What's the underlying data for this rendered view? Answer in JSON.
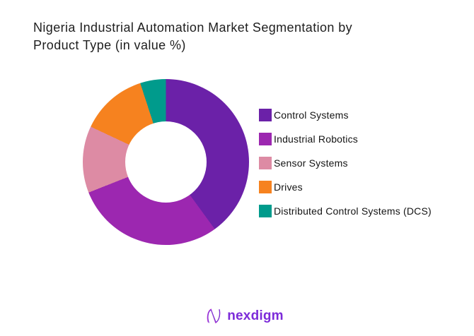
{
  "page": {
    "background": "#ffffff",
    "text_color": "#1e1e1e"
  },
  "header": {
    "title": "Nigeria Industrial Automation Market Segmentation by Product Type (in value %)",
    "title_lines": [
      "Nigeria Industrial Automation Market Segmentation by",
      "Product Type (in value %)"
    ]
  },
  "chart_data": {
    "type": "pie",
    "subtype": "donut",
    "title": "Nigeria Industrial Automation Market Segmentation by Product Type (in value %)",
    "categories": [
      "Control Systems",
      "Industrial Robotics",
      "Sensor Systems",
      "Drives",
      "Distributed Control Systems (DCS)"
    ],
    "values": [
      40,
      29,
      13,
      13,
      5
    ],
    "unit": "value %",
    "values_note": "estimated from arc angles; no data labels shown on chart",
    "colors": [
      "#6B21A8",
      "#9C27B0",
      "#DD8BA4",
      "#F6821F",
      "#009B8C"
    ],
    "start_angle_deg": 0,
    "direction": "clockwise",
    "inner_radius_ratio": 0.485,
    "legend_position": "right",
    "data_labels": false,
    "grid": false
  },
  "footer": {
    "brand": "nexdigm",
    "brand_color": "#7C2BD9",
    "logo_icon": "nexdigm-n-wave-icon"
  }
}
